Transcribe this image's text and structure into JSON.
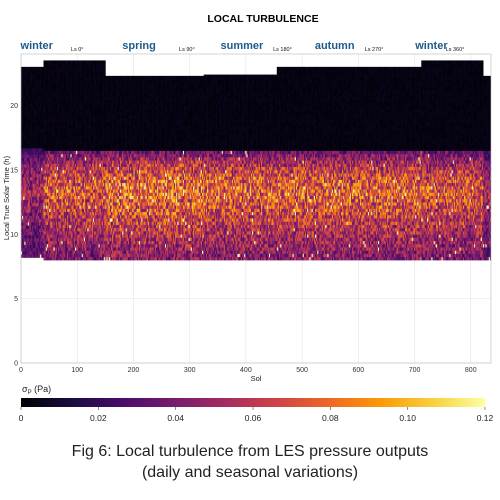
{
  "caption": {
    "line1": "Fig 6: Local turbulence from LES pressure outputs",
    "line2": "(daily and seasonal variations)"
  },
  "chart_data": {
    "type": "heatmap",
    "title": "LOCAL TURBULENCE",
    "xlabel": "Sol",
    "ylabel": "Local True Solar Time (h)",
    "xlim": [
      0,
      836
    ],
    "ylim": [
      0,
      24
    ],
    "xticks": [
      0,
      100,
      200,
      300,
      400,
      500,
      600,
      700,
      800
    ],
    "yticks": [
      0,
      5,
      10,
      15,
      20
    ],
    "grid": true,
    "seasons": [
      {
        "label": "winter",
        "x": 28
      },
      {
        "label": "spring",
        "x": 210
      },
      {
        "label": "summer",
        "x": 393
      },
      {
        "label": "autumn",
        "x": 558
      },
      {
        "label": "winter",
        "x": 730
      }
    ],
    "ls_markers": [
      {
        "label": "Ls 0°",
        "x": 100
      },
      {
        "label": "Ls 90°",
        "x": 295
      },
      {
        "label": "Ls 180°",
        "x": 465
      },
      {
        "label": "Ls 270°",
        "x": 628
      },
      {
        "label": "Ls 360°",
        "x": 772
      }
    ],
    "data_segments": [
      {
        "x0": 0,
        "x1": 40,
        "ytop": 23.0,
        "ybottom": 8.2,
        "peak_intensity": 0.06
      },
      {
        "x0": 40,
        "x1": 150,
        "ytop": 23.5,
        "ybottom": 8.0,
        "peak_intensity": 0.085
      },
      {
        "x0": 150,
        "x1": 325,
        "ytop": 22.3,
        "ybottom": 8.0,
        "peak_intensity": 0.095
      },
      {
        "x0": 325,
        "x1": 455,
        "ytop": 22.4,
        "ybottom": 8.0,
        "peak_intensity": 0.09
      },
      {
        "x0": 455,
        "x1": 712,
        "ytop": 23.0,
        "ybottom": 8.0,
        "peak_intensity": 0.09
      },
      {
        "x0": 712,
        "x1": 822,
        "ytop": 23.5,
        "ybottom": 8.0,
        "peak_intensity": 0.085
      },
      {
        "x0": 822,
        "x1": 836,
        "ytop": 22.3,
        "ybottom": 8.0,
        "peak_intensity": 0.06
      }
    ],
    "daily_profile": {
      "active_start_h": 8.0,
      "active_peak_h": 13.0,
      "active_end_h": 16.5,
      "night_value": 0.003
    },
    "colorbar": {
      "label": "σP (Pa)",
      "label_sym": "σ",
      "label_sub": "P",
      "label_unit": " (Pa)",
      "min": 0,
      "max": 0.12,
      "ticks": [
        "0",
        "0.02",
        "0.04",
        "0.06",
        "0.08",
        "0.10",
        "0.12"
      ],
      "colormap": "inferno",
      "stops": [
        "#000004",
        "#1b0c41",
        "#4a0c6b",
        "#781c6d",
        "#a52c60",
        "#cf4446",
        "#ed6925",
        "#fb9b06",
        "#f7d13d",
        "#fcffa4"
      ]
    }
  }
}
